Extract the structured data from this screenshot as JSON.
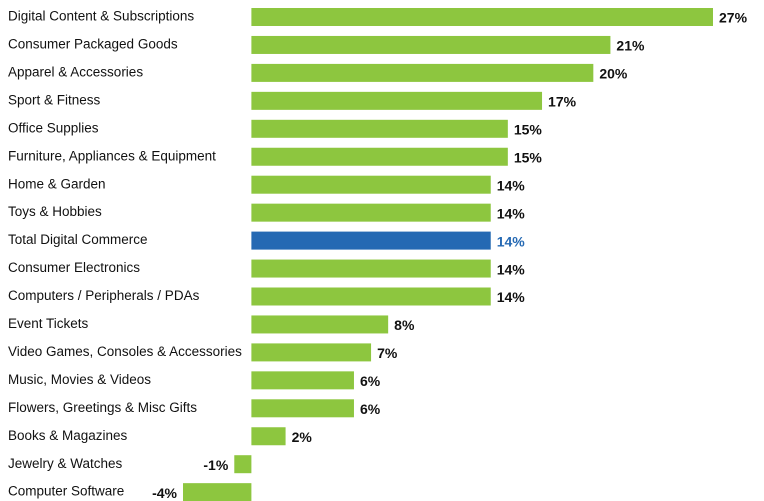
{
  "chart_data": {
    "type": "bar",
    "orientation": "horizontal",
    "categories": [
      "Digital Content & Subscriptions",
      "Consumer Packaged Goods",
      "Apparel & Accessories",
      "Sport & Fitness",
      "Office Supplies",
      "Furniture, Appliances & Equipment",
      "Home & Garden",
      "Toys & Hobbies",
      "Total Digital Commerce",
      "Consumer Electronics",
      "Computers / Peripherals / PDAs",
      "Event Tickets",
      "Video Games, Consoles & Accessories",
      "Music, Movies & Videos",
      "Flowers, Greetings & Misc Gifts",
      "Books & Magazines",
      "Jewelry & Watches",
      "Computer Software"
    ],
    "values": [
      27,
      21,
      20,
      17,
      15,
      15,
      14,
      14,
      14,
      14,
      14,
      8,
      7,
      6,
      6,
      2,
      -1,
      -4
    ],
    "value_labels": [
      "27%",
      "21%",
      "20%",
      "17%",
      "15%",
      "15%",
      "14%",
      "14%",
      "14%",
      "14%",
      "14%",
      "8%",
      "7%",
      "6%",
      "6%",
      "2%",
      "-1%",
      "-4%"
    ],
    "colors": [
      "#8dc63f",
      "#8dc63f",
      "#8dc63f",
      "#8dc63f",
      "#8dc63f",
      "#8dc63f",
      "#8dc63f",
      "#8dc63f",
      "#2569b3",
      "#8dc63f",
      "#8dc63f",
      "#8dc63f",
      "#8dc63f",
      "#8dc63f",
      "#8dc63f",
      "#8dc63f",
      "#8dc63f",
      "#8dc63f"
    ],
    "label_colors": [
      "#111111",
      "#111111",
      "#111111",
      "#111111",
      "#111111",
      "#111111",
      "#111111",
      "#111111",
      "#2569b3",
      "#111111",
      "#111111",
      "#111111",
      "#111111",
      "#111111",
      "#111111",
      "#111111",
      "#111111",
      "#111111"
    ]
  }
}
